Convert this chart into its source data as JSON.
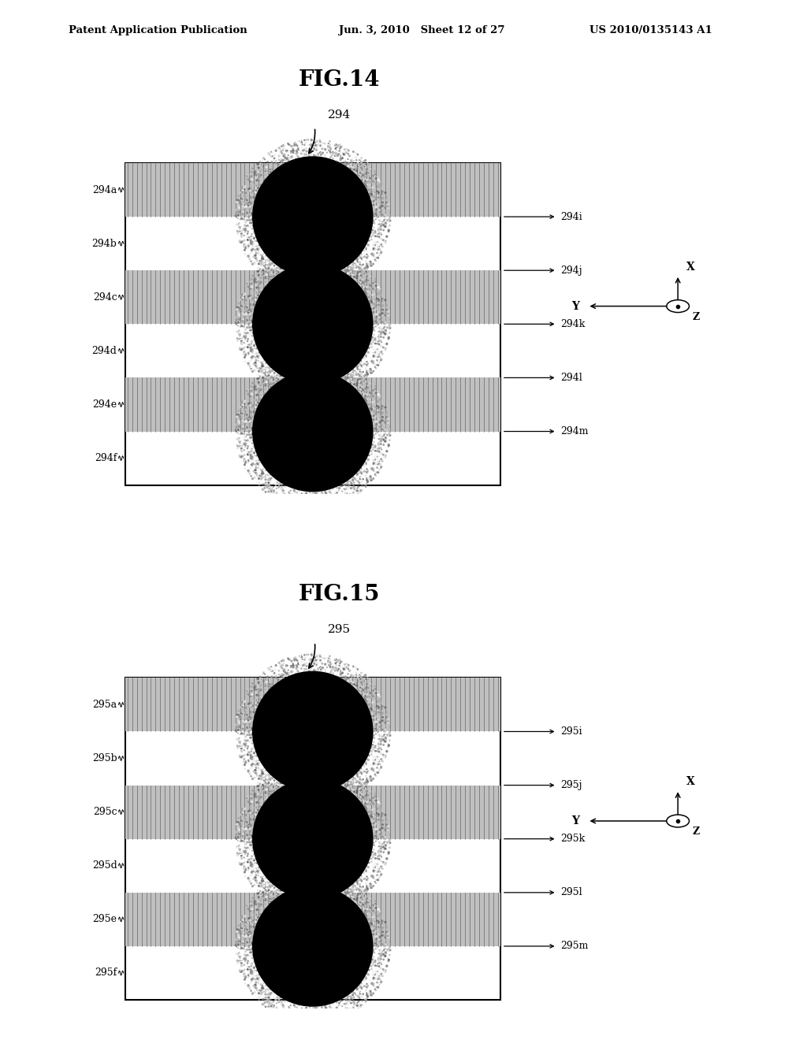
{
  "page_header_left": "Patent Application Publication",
  "page_header_mid": "Jun. 3, 2010   Sheet 12 of 27",
  "page_header_right": "US 2010/0135143 A1",
  "fig14": {
    "title": "FIG.14",
    "label": "294",
    "left_labels": [
      "294a",
      "294b",
      "294c",
      "294d",
      "294e",
      "294f"
    ],
    "right_labels": [
      "294i",
      "294j",
      "294k",
      "294l",
      "294m"
    ]
  },
  "fig15": {
    "title": "FIG.15",
    "label": "295",
    "left_labels": [
      "295a",
      "295b",
      "295c",
      "295d",
      "295e",
      "295f"
    ],
    "right_labels": [
      "295i",
      "295j",
      "295k",
      "295l",
      "295m"
    ]
  },
  "bg_color": "#ffffff",
  "text_color": "#000000"
}
